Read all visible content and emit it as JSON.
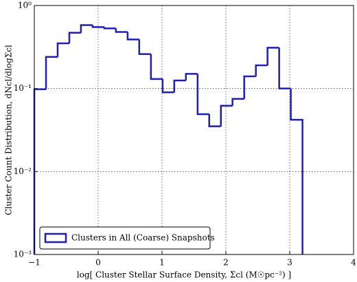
{
  "chart_data": {
    "type": "step-histogram",
    "xlabel": "log[ Cluster Stellar Surface Density, Σcl (M☉pc⁻²) ]",
    "ylabel": "Cluster Count Distribution, dNcl/dlogΣcl",
    "bins": [
      -1,
      -0.817,
      -0.635,
      -0.452,
      -0.27,
      -0.087,
      0.096,
      0.278,
      0.461,
      0.643,
      0.826,
      1.009,
      1.191,
      1.374,
      1.557,
      1.739,
      1.922,
      2.104,
      2.287,
      2.47,
      2.652,
      2.835,
      3.017,
      3.2
    ],
    "series": [
      {
        "name": "Clusters in All (Coarse) Snapshots",
        "color": "#1f1fb4",
        "values": [
          0.098,
          0.24,
          0.35,
          0.47,
          0.58,
          0.55,
          0.53,
          0.48,
          0.39,
          0.26,
          0.13,
          0.09,
          0.125,
          0.15,
          0.049,
          0.035,
          0.062,
          0.075,
          0.14,
          0.19,
          0.31,
          0.1,
          0.042
        ]
      }
    ],
    "xlim": [
      -1,
      4
    ],
    "ylim": [
      0.001,
      1
    ],
    "log_y": true,
    "grid": true,
    "legend": "lower left",
    "xticks": [
      {
        "value": -1,
        "label": "−1"
      },
      0,
      1,
      2,
      3,
      4
    ],
    "yticks": [
      {
        "value": 0.001,
        "label": "10⁻³"
      },
      {
        "value": 0.01,
        "label": "10⁻²"
      },
      {
        "value": 0.1,
        "label": "10⁻¹"
      },
      {
        "value": 1,
        "label": "10⁰"
      }
    ]
  }
}
